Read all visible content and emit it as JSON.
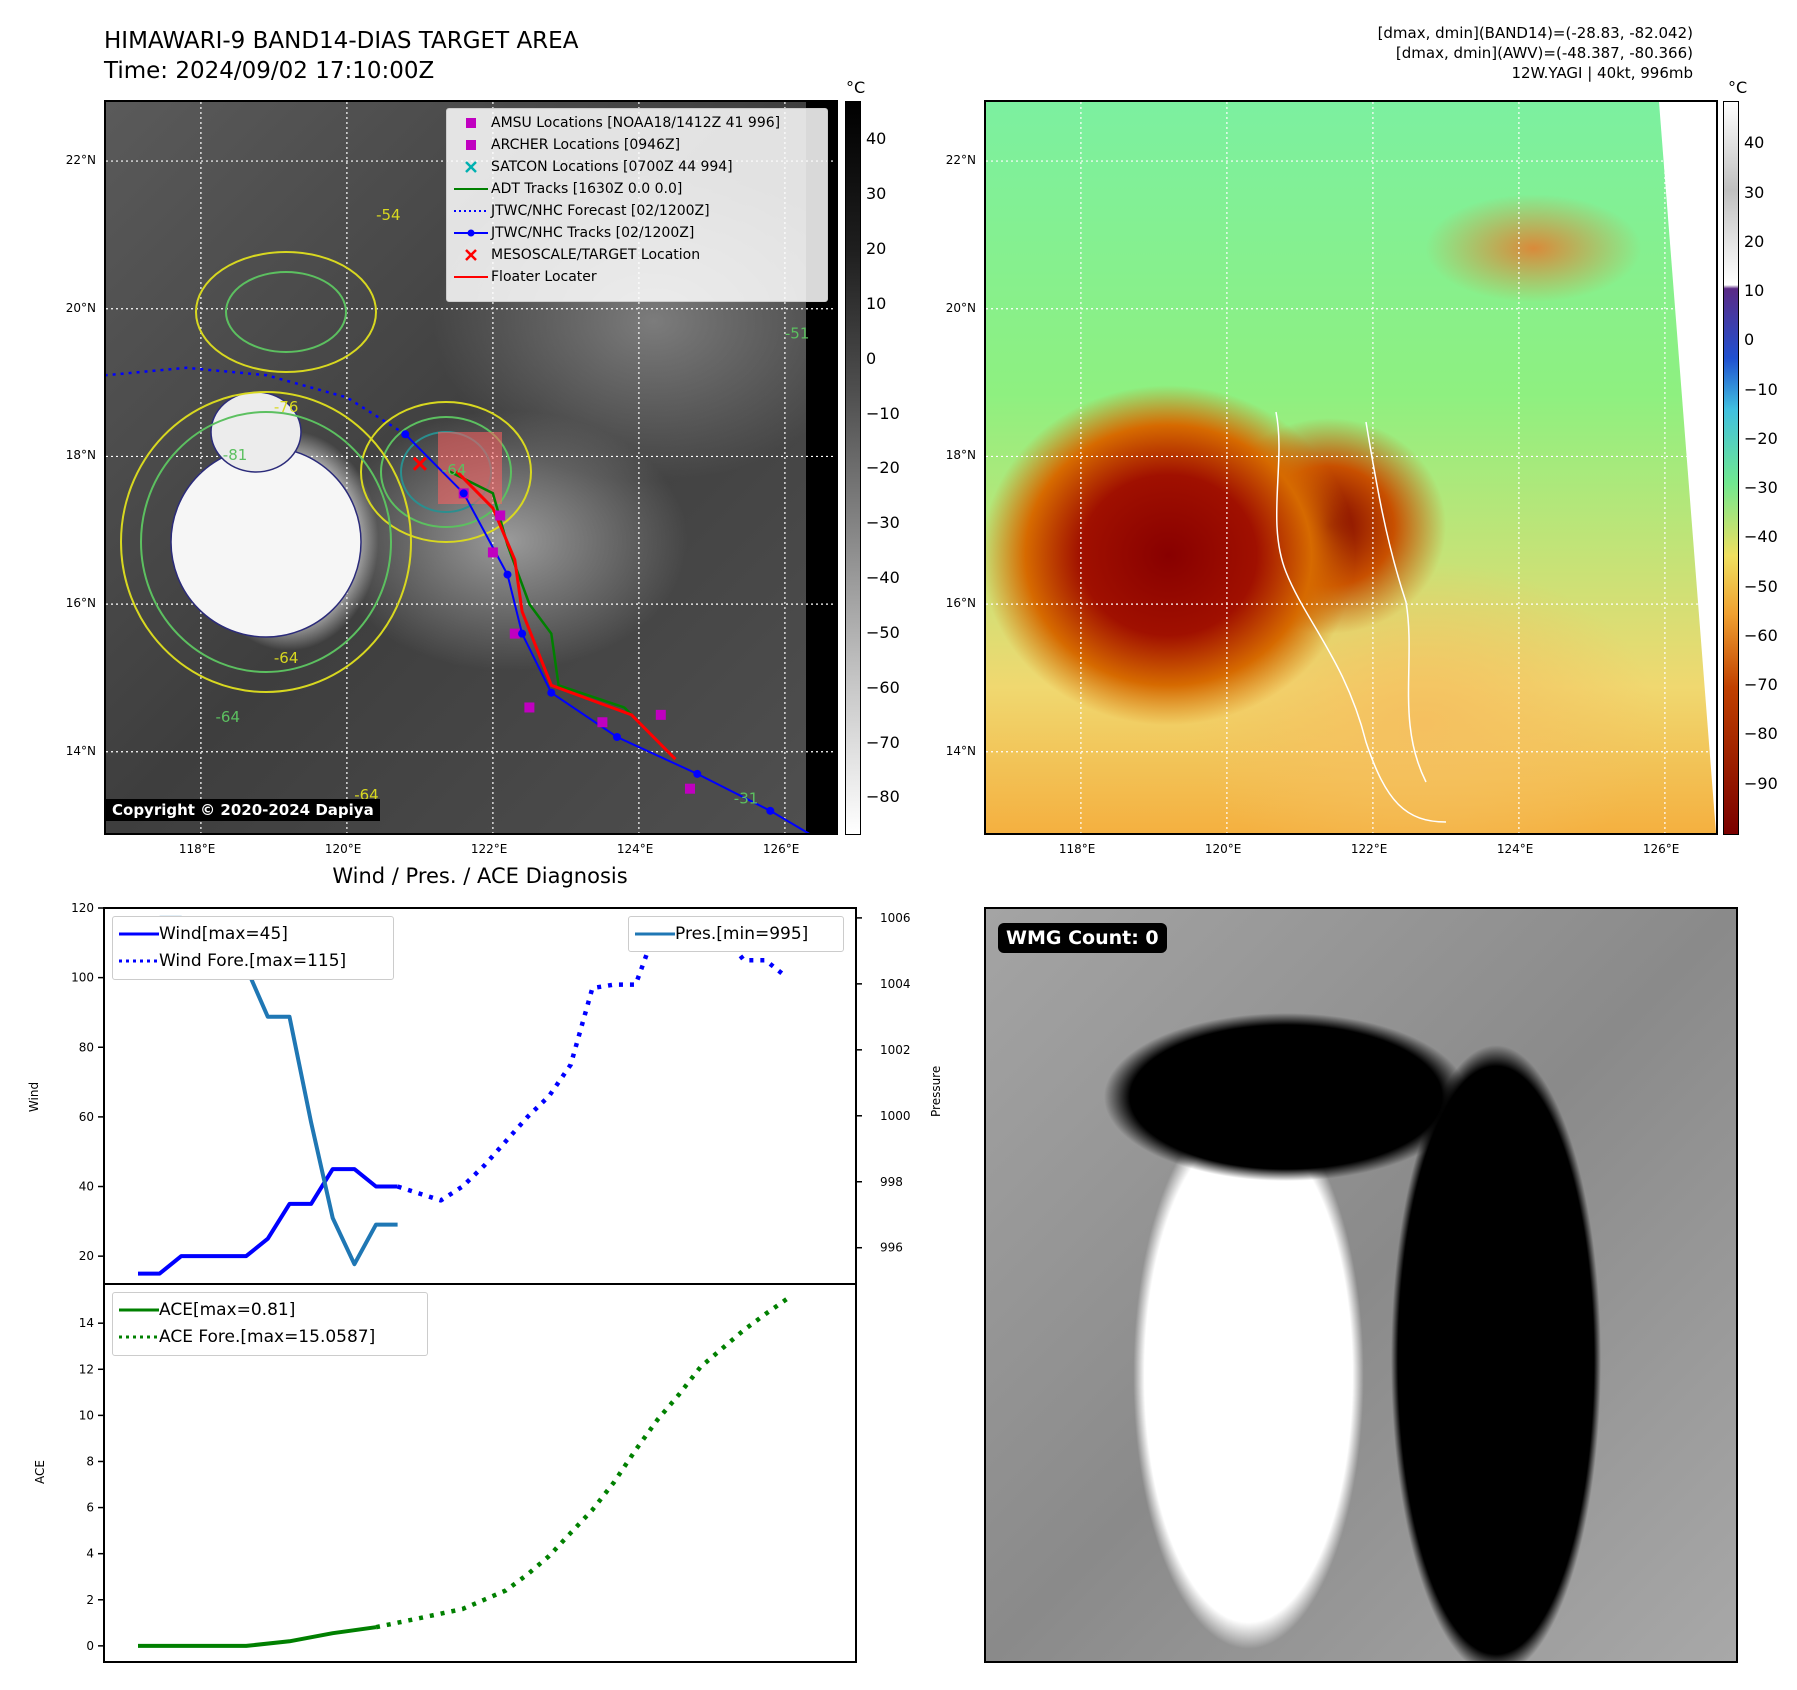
{
  "header": {
    "title": "HIMAWARI-9 BAND14-DIAS TARGET AREA",
    "time": "Time: 2024/09/02 17:10:00Z",
    "info_band14": "[dmax, dmin](BAND14)=(-28.83, -82.042)",
    "info_awv": "[dmax, dmin](AWV)=(-48.387, -80.366)",
    "info_storm": "12W.YAGI | 40kt, 996mb"
  },
  "map": {
    "lon_ticks": [
      "118°E",
      "120°E",
      "122°E",
      "124°E",
      "126°E"
    ],
    "lat_ticks": [
      "22°N",
      "20°N",
      "18°N",
      "16°N",
      "14°N"
    ],
    "lon_range": [
      116.7,
      126.7
    ],
    "lat_range": [
      12.9,
      22.8
    ],
    "contour_labels": [
      "-81",
      "-76",
      "-64",
      "-54",
      "-51",
      "-64",
      "-64",
      "-64",
      "-31"
    ],
    "copyright": "Copyright © 2020-2024 Dapiya",
    "legend": [
      {
        "label": "AMSU Locations [NOAA18/1412Z 41 996]",
        "symbol": "square",
        "color": "#c000c0"
      },
      {
        "label": "ARCHER Locations [0946Z]",
        "symbol": "square",
        "color": "#c000c0"
      },
      {
        "label": "SATCON Locations [0700Z 44 994]",
        "symbol": "x",
        "color": "#00b0b0"
      },
      {
        "label": "ADT Tracks [1630Z 0.0 0.0]",
        "symbol": "line",
        "color": "#008000"
      },
      {
        "label": "JTWC/NHC Forecast [02/1200Z]",
        "symbol": "dotted",
        "color": "#0000ff"
      },
      {
        "label": "JTWC/NHC Tracks [02/1200Z]",
        "symbol": "line-dot",
        "color": "#0000ff"
      },
      {
        "label": "MESOSCALE/TARGET Location",
        "symbol": "x",
        "color": "#ff0000"
      },
      {
        "label": "Floater Locater",
        "symbol": "line",
        "color": "#ff0000"
      }
    ],
    "jtwc_track": [
      [
        127.0,
        12.5
      ],
      [
        125.8,
        13.2
      ],
      [
        124.8,
        13.7
      ],
      [
        123.7,
        14.2
      ],
      [
        122.8,
        14.8
      ],
      [
        122.4,
        15.6
      ],
      [
        122.2,
        16.4
      ],
      [
        121.6,
        17.5
      ],
      [
        120.8,
        18.3
      ]
    ],
    "jtwc_forecast": [
      [
        120.8,
        18.3
      ],
      [
        120.0,
        18.8
      ],
      [
        118.9,
        19.1
      ],
      [
        117.8,
        19.2
      ],
      [
        116.7,
        19.1
      ]
    ],
    "adt_track": [
      [
        124.4,
        14.0
      ],
      [
        123.8,
        14.6
      ],
      [
        122.9,
        14.9
      ],
      [
        122.8,
        15.6
      ],
      [
        122.5,
        16.0
      ],
      [
        122.2,
        16.8
      ],
      [
        122.0,
        17.5
      ],
      [
        121.4,
        17.8
      ]
    ],
    "floater_track": [
      [
        124.5,
        13.9
      ],
      [
        123.9,
        14.5
      ],
      [
        122.8,
        14.9
      ],
      [
        122.6,
        15.4
      ],
      [
        122.4,
        15.9
      ],
      [
        122.3,
        16.6
      ],
      [
        122.0,
        17.3
      ],
      [
        121.5,
        17.8
      ]
    ],
    "amsu_points": [
      [
        122.1,
        17.2
      ],
      [
        122.0,
        16.7
      ],
      [
        121.6,
        17.5
      ],
      [
        122.3,
        15.6
      ],
      [
        122.5,
        14.6
      ],
      [
        123.5,
        14.4
      ],
      [
        124.3,
        14.5
      ],
      [
        124.7,
        13.5
      ]
    ],
    "target_point": [
      121.0,
      17.9
    ]
  },
  "colorbars": {
    "unit": "°C",
    "band14_ticks": [
      "40",
      "30",
      "20",
      "10",
      "0",
      "−10",
      "−20",
      "−30",
      "−40",
      "−50",
      "−60",
      "−70",
      "−80"
    ],
    "awv_ticks": [
      "40",
      "30",
      "20",
      "10",
      "0",
      "−10",
      "−20",
      "−30",
      "−40",
      "−50",
      "−60",
      "−70",
      "−80",
      "−90"
    ]
  },
  "wmg": {
    "count_label": "WMG Count: 0"
  },
  "chart_data": [
    {
      "type": "line",
      "title": "Wind / Pres. / ACE Diagnosis",
      "ylabel": "Wind",
      "y2label": "Pressure",
      "ylim": [
        12,
        120
      ],
      "y2lim": [
        994.9,
        1006.3
      ],
      "y_ticks": [
        "20",
        "40",
        "60",
        "80",
        "100",
        "120"
      ],
      "y2_ticks": [
        "996",
        "998",
        "1000",
        "1002",
        "1004",
        "1006"
      ],
      "series": [
        {
          "name": "Wind[max=45]",
          "color": "#0000ff",
          "style": "solid",
          "axis": "left",
          "x": [
            0,
            1,
            2,
            3,
            4,
            5,
            6,
            7,
            8,
            9,
            10,
            11,
            12
          ],
          "y": [
            15,
            15,
            20,
            20,
            20,
            20,
            25,
            35,
            35,
            45,
            45,
            40,
            40
          ]
        },
        {
          "name": "Wind Fore.[max=115]",
          "color": "#0000ff",
          "style": "dotted",
          "axis": "left",
          "x": [
            12,
            13,
            14,
            15,
            16,
            17,
            18,
            19,
            20,
            21,
            22,
            23,
            24,
            25,
            26,
            27,
            28,
            29,
            30
          ],
          "y": [
            40,
            38,
            36,
            40,
            46,
            53,
            60,
            66,
            75,
            97,
            98,
            98,
            115,
            113,
            112,
            113,
            105,
            105,
            100
          ]
        },
        {
          "name": "Pres.[min=995]",
          "color": "#1f77b4",
          "style": "solid",
          "axis": "right",
          "x": [
            1,
            2,
            3,
            4,
            5,
            6,
            7,
            8,
            9,
            10,
            11,
            12
          ],
          "y": [
            1006,
            1006,
            1005.4,
            1005.4,
            1004.5,
            1003,
            1003,
            999.8,
            996.9,
            995.5,
            996.7,
            996.7
          ]
        }
      ]
    },
    {
      "type": "line",
      "ylabel": "ACE",
      "ylim": [
        -0.7,
        15.7
      ],
      "y_ticks": [
        "0",
        "2",
        "4",
        "6",
        "8",
        "10",
        "12",
        "14"
      ],
      "series": [
        {
          "name": "ACE[max=0.81]",
          "color": "#008000",
          "style": "solid",
          "x": [
            0,
            3,
            5,
            7,
            9,
            11
          ],
          "y": [
            0,
            0,
            0,
            0.2,
            0.55,
            0.81
          ]
        },
        {
          "name": "ACE Fore.[max=15.0587]",
          "color": "#008000",
          "style": "dotted",
          "x": [
            11,
            13,
            15,
            17,
            18,
            19,
            20,
            21,
            22,
            23,
            24,
            25,
            26,
            27,
            28,
            29,
            30
          ],
          "y": [
            0.81,
            1.2,
            1.6,
            2.4,
            3.1,
            3.9,
            4.9,
            5.9,
            7.1,
            8.5,
            9.8,
            10.9,
            12.1,
            12.9,
            13.7,
            14.4,
            15.06
          ]
        }
      ]
    }
  ]
}
